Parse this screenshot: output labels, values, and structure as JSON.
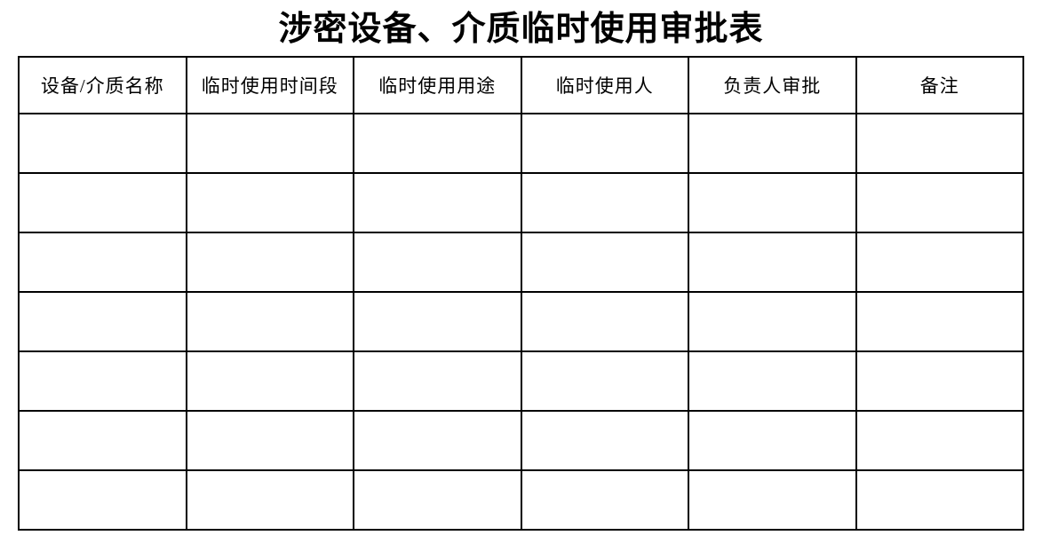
{
  "page": {
    "title": "涉密设备、介质临时使用审批表",
    "background_color": "#ffffff",
    "border_color": "#000000"
  },
  "table": {
    "columns": [
      "设备/介质名称",
      "临时使用时间段",
      "临时使用用途",
      "临时使用人",
      "负责人审批",
      "备注"
    ],
    "rows": [
      [
        "",
        "",
        "",
        "",
        "",
        ""
      ],
      [
        "",
        "",
        "",
        "",
        "",
        ""
      ],
      [
        "",
        "",
        "",
        "",
        "",
        ""
      ],
      [
        "",
        "",
        "",
        "",
        "",
        ""
      ],
      [
        "",
        "",
        "",
        "",
        "",
        ""
      ],
      [
        "",
        "",
        "",
        "",
        "",
        ""
      ],
      [
        "",
        "",
        "",
        "",
        "",
        ""
      ]
    ]
  }
}
